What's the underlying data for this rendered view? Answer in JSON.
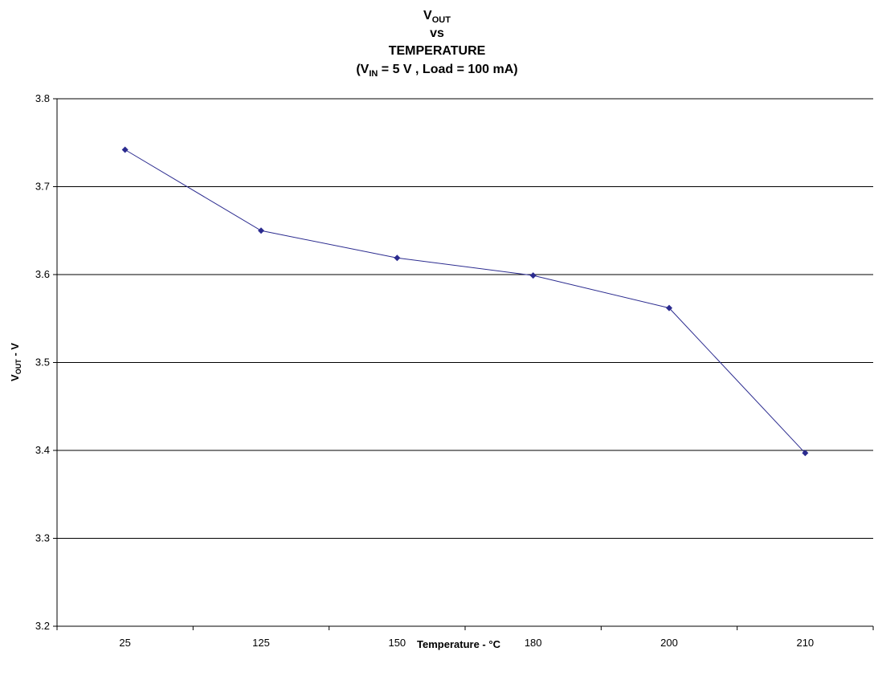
{
  "chart_data": {
    "type": "line",
    "title": {
      "line1_main": "V",
      "line1_sub": "OUT",
      "line2": "vs",
      "line3": "TEMPERATURE",
      "line4_open": "(V",
      "line4_sub": "IN",
      "line4_rest": " = 5 V , Load = 100 mA)"
    },
    "xlabel": "Temperature - °C",
    "ylabel": {
      "main": "V",
      "sub": "OUT",
      "rest": " - V"
    },
    "categories": [
      "25",
      "125",
      "150",
      "180",
      "200",
      "210"
    ],
    "series": [
      {
        "values": [
          3.742,
          3.65,
          3.619,
          3.599,
          3.562,
          3.397
        ]
      }
    ],
    "ylim": [
      3.2,
      3.8
    ],
    "yticks": [
      "3.2",
      "3.3",
      "3.4",
      "3.5",
      "3.6",
      "3.7",
      "3.8"
    ],
    "ytick_values": [
      3.2,
      3.3,
      3.4,
      3.5,
      3.6,
      3.7,
      3.8
    ],
    "grid": "horizontal",
    "colors": {
      "series": "#2b2b8f",
      "grid": "#000000"
    }
  }
}
